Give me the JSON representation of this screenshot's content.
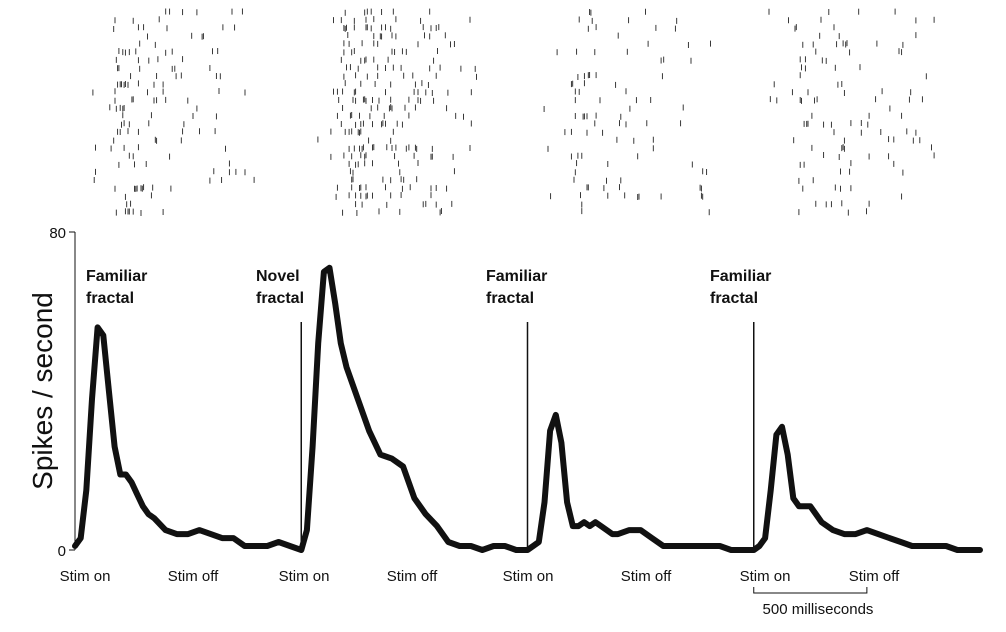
{
  "chart_data": {
    "type": "line",
    "ylabel": "Spikes / second",
    "ylim": [
      0,
      80
    ],
    "y_tick_labels": [
      "0",
      "80"
    ],
    "x_tick_labels": [
      "Stim on",
      "Stim off",
      "Stim on",
      "Stim off",
      "Stim on",
      "Stim off",
      "Stim on",
      "Stim off"
    ],
    "scale_bar_label": "500 milliseconds",
    "annotations": [
      {
        "line1": "Familiar",
        "line2": "fractal"
      },
      {
        "line1": "Novel",
        "line2": "fractal"
      },
      {
        "line1": "Familiar",
        "line2": "fractal"
      },
      {
        "line1": "Familiar",
        "line2": "fractal"
      }
    ],
    "series": [
      {
        "x": [
          0,
          25,
          50,
          75,
          100,
          125,
          150,
          175,
          200,
          225,
          250,
          275,
          300,
          325,
          350,
          400,
          450,
          500,
          550,
          600,
          650,
          700,
          750,
          800,
          850,
          900,
          950,
          1000,
          1025,
          1050,
          1075,
          1100,
          1125,
          1150,
          1175,
          1200,
          1250,
          1300,
          1350,
          1400,
          1450,
          1500,
          1550,
          1600,
          1650,
          1700,
          1750,
          1800,
          1850,
          1900,
          1950,
          2000,
          2025,
          2050,
          2075,
          2100,
          2125,
          2150,
          2175,
          2200,
          2225,
          2250,
          2275,
          2300,
          2325,
          2350,
          2375,
          2400,
          2450,
          2500,
          2550,
          2600,
          2650,
          2700,
          2750,
          2800,
          2850,
          2900,
          2950,
          3000,
          3025,
          3050,
          3075,
          3100,
          3125,
          3150,
          3175,
          3200,
          3225,
          3250,
          3275,
          3300,
          3350,
          3400,
          3450,
          3500,
          3550,
          3600,
          3650,
          3700,
          3750,
          3800,
          3850,
          3900,
          3950,
          4000
        ],
        "y": [
          1,
          3,
          15,
          38,
          56,
          54,
          40,
          26,
          19,
          19,
          17,
          14,
          11,
          9,
          8,
          5,
          4,
          4,
          5,
          4,
          3,
          3,
          1,
          1,
          1,
          2,
          1,
          0,
          5,
          26,
          52,
          70,
          71,
          62,
          52,
          46,
          38,
          30,
          24,
          23,
          21,
          13,
          9,
          6,
          2,
          1,
          1,
          0,
          1,
          1,
          0,
          0,
          1,
          2,
          12,
          30,
          34,
          27,
          12,
          6,
          6,
          7,
          6,
          7,
          6,
          5,
          4,
          4,
          5,
          5,
          3,
          1,
          1,
          1,
          1,
          1,
          1,
          0,
          0,
          0,
          1,
          3,
          15,
          29,
          31,
          24,
          13,
          11,
          11,
          11,
          9,
          7,
          5,
          4,
          4,
          5,
          4,
          3,
          2,
          1,
          1,
          1,
          1,
          0,
          0,
          0
        ]
      }
    ],
    "x_tick_values": [
      0,
      500,
      1000,
      1500,
      2000,
      2500,
      3000,
      3500
    ],
    "stim_on_markers": [
      1000,
      2000,
      3000
    ],
    "scale_bar": [
      3000,
      3500
    ],
    "xlim": [
      0,
      4000
    ],
    "raster_panels": [
      [
        0,
        750
      ],
      [
        1000,
        1750
      ],
      [
        2000,
        2750
      ],
      [
        3000,
        3750
      ]
    ],
    "line_color": "#111111"
  }
}
